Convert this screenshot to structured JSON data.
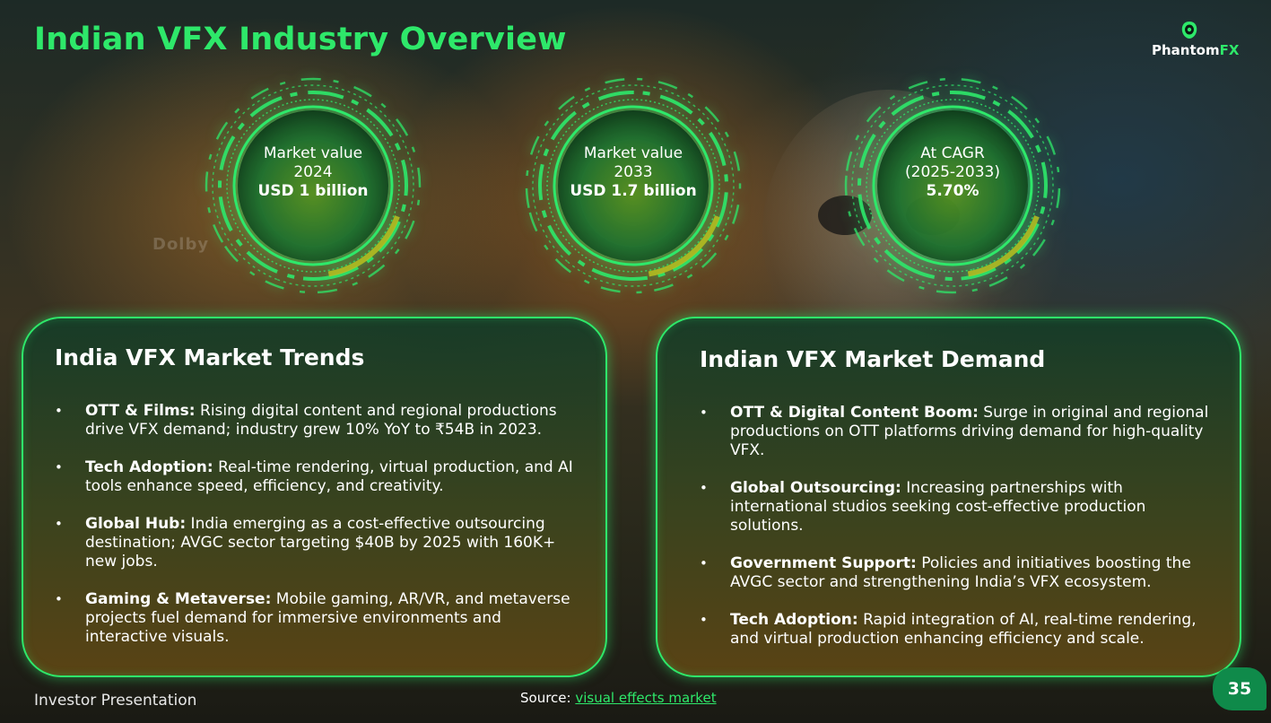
{
  "title": "Indian VFX Industry Overview",
  "logo": {
    "text_main": "Phantom",
    "text_accent": "FX"
  },
  "background_watermark": "Dolby",
  "stats": [
    {
      "line1": "Market value",
      "line2": "2024",
      "value": "USD 1 billion"
    },
    {
      "line1": "Market value",
      "line2": "2033",
      "value": "USD 1.7 billion"
    },
    {
      "line1": "At CAGR",
      "line2": "(2025-2033)",
      "value": "5.70%"
    }
  ],
  "trends": {
    "heading": "India VFX Market Trends",
    "items": [
      {
        "label": "OTT & Films:",
        "text": " Rising digital content and regional productions drive VFX demand; industry grew 10% YoY to ₹54B in 2023."
      },
      {
        "label": "Tech Adoption:",
        "text": " Real-time rendering, virtual production, and AI tools enhance speed, efficiency, and creativity."
      },
      {
        "label": "Global Hub:",
        "text": " India emerging as a cost-effective outsourcing destination; AVGC sector targeting $40B by 2025 with 160K+ new jobs."
      },
      {
        "label": "Gaming & Metaverse:",
        "text": " Mobile gaming, AR/VR, and metaverse projects fuel demand for immersive environments and interactive visuals."
      }
    ]
  },
  "demand": {
    "heading": "Indian VFX Market Demand",
    "items": [
      {
        "label": "OTT & Digital Content Boom:",
        "text": " Surge in original and regional productions on OTT platforms driving demand for high-quality VFX."
      },
      {
        "label": "Global Outsourcing:",
        "text": " Increasing partnerships with international studios seeking cost-effective production solutions."
      },
      {
        "label": "Government Support:",
        "text": " Policies and initiatives boosting the AVGC sector and strengthening India’s VFX ecosystem."
      },
      {
        "label": "Tech Adoption:",
        "text": " Rapid integration of AI, real-time rendering, and virtual production enhancing efficiency and scale."
      }
    ]
  },
  "footer": {
    "left": "Investor Presentation",
    "source_label": "Source: ",
    "source_link": "visual effects market",
    "page_number": "35"
  },
  "colors": {
    "accent": "#2ee86a",
    "page_badge": "#0f8a4a"
  }
}
